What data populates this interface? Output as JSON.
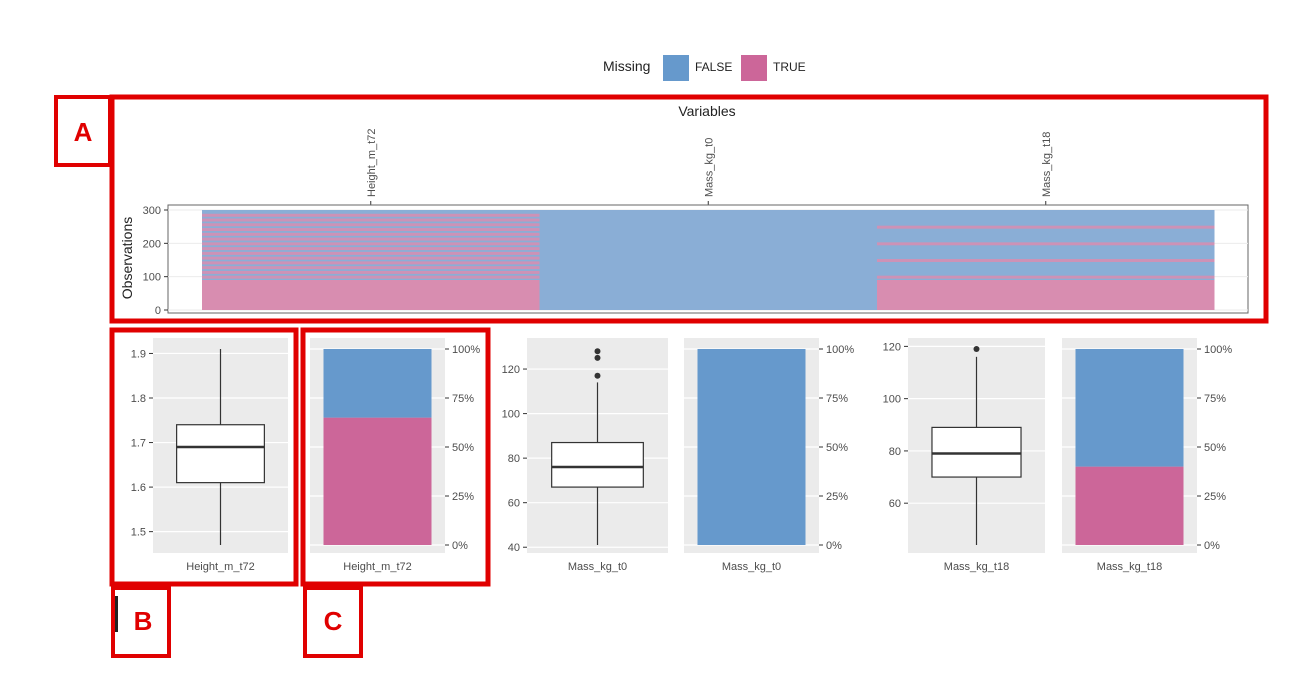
{
  "legend": {
    "title": "Missing",
    "items": [
      {
        "label": "FALSE",
        "color": "#6699cc"
      },
      {
        "label": "TRUE",
        "color": "#cc6699"
      }
    ]
  },
  "markers": {
    "a": "A",
    "b": "B",
    "c": "C",
    "color": "#e00000"
  },
  "chart_data": [
    {
      "type": "heatmap",
      "title": "Variables",
      "xlabel": "Variables",
      "ylabel": "Observations",
      "categories": [
        "Height_m_t72",
        "Mass_kg_t0",
        "Mass_kg_t18"
      ],
      "y_ticks": [
        0,
        100,
        200,
        300
      ],
      "ylim": [
        0,
        300
      ],
      "columns": [
        {
          "variable": "Height_m_t72",
          "missing_rows_approx": 200,
          "pattern": "mixed"
        },
        {
          "variable": "Mass_kg_t0",
          "missing_rows_approx": 0,
          "pattern": "none"
        },
        {
          "variable": "Mass_kg_t18",
          "missing_rows_approx": 120,
          "pattern": "mixed"
        }
      ],
      "colors": {
        "FALSE": "#8aaed6",
        "TRUE": "#d88db0"
      }
    },
    {
      "type": "boxplot",
      "xlabel": "Height_m_t72",
      "ylim": [
        1.47,
        1.91
      ],
      "y_ticks": [
        1.5,
        1.6,
        1.7,
        1.8,
        1.9
      ],
      "y_tick_labels": [
        "1.5",
        "1.6",
        "1.7",
        "1.8",
        "1.9"
      ],
      "stats": {
        "min": 1.47,
        "q1": 1.61,
        "median": 1.69,
        "q3": 1.74,
        "max": 1.91
      },
      "outliers": []
    },
    {
      "type": "bar",
      "stacked": true,
      "percent": true,
      "xlabel": "Height_m_t72",
      "y_tick_labels": [
        "0%",
        "25%",
        "50%",
        "75%",
        "100%"
      ],
      "series": [
        {
          "name": "TRUE",
          "values": [
            65
          ]
        },
        {
          "name": "FALSE",
          "values": [
            35
          ]
        }
      ]
    },
    {
      "type": "boxplot",
      "xlabel": "Mass_kg_t0",
      "ylim": [
        41,
        129
      ],
      "y_ticks": [
        40,
        60,
        80,
        100,
        120
      ],
      "y_tick_labels": [
        "40",
        "60",
        "80",
        "100",
        "120"
      ],
      "stats": {
        "min": 41,
        "q1": 67,
        "median": 76,
        "q3": 87,
        "max": 114
      },
      "outliers": [
        117,
        125,
        128
      ]
    },
    {
      "type": "bar",
      "stacked": true,
      "percent": true,
      "xlabel": "Mass_kg_t0",
      "y_tick_labels": [
        "0%",
        "25%",
        "50%",
        "75%",
        "100%"
      ],
      "series": [
        {
          "name": "TRUE",
          "values": [
            0
          ]
        },
        {
          "name": "FALSE",
          "values": [
            100
          ]
        }
      ]
    },
    {
      "type": "boxplot",
      "xlabel": "Mass_kg_t18",
      "ylim": [
        44,
        119
      ],
      "y_ticks": [
        60,
        80,
        100,
        120
      ],
      "y_tick_labels": [
        "60",
        "80",
        "100",
        "120"
      ],
      "stats": {
        "min": 44,
        "q1": 70,
        "median": 79,
        "q3": 89,
        "max": 116
      },
      "outliers": [
        119
      ]
    },
    {
      "type": "bar",
      "stacked": true,
      "percent": true,
      "xlabel": "Mass_kg_t18",
      "y_tick_labels": [
        "0%",
        "25%",
        "50%",
        "75%",
        "100%"
      ],
      "series": [
        {
          "name": "TRUE",
          "values": [
            40
          ]
        },
        {
          "name": "FALSE",
          "values": [
            60
          ]
        }
      ]
    }
  ]
}
